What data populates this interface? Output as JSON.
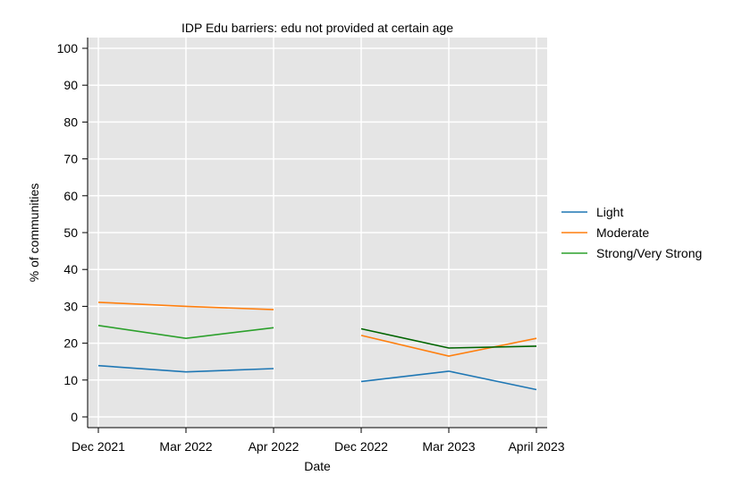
{
  "chart_data": {
    "type": "line",
    "title": "IDP Edu barriers: edu not provided at certain age",
    "xlabel": "Date",
    "ylabel": "% of communities",
    "categories": [
      "Dec 2021",
      "Mar 2022",
      "Apr 2022",
      "Dec 2022",
      "Mar 2023",
      "April 2023"
    ],
    "ylim": [
      0,
      100
    ],
    "yticks": [
      0,
      10,
      20,
      30,
      40,
      50,
      60,
      70,
      80,
      90,
      100
    ],
    "grid": true,
    "legend_position": "right",
    "background_color": "#e5e5e5",
    "series": [
      {
        "name": "Light",
        "color": "#1f77b4",
        "values": [
          13.9,
          12.2,
          13.1,
          9.6,
          12.4,
          7.4
        ]
      },
      {
        "name": "Moderate",
        "color": "#ff7f0e",
        "values": [
          31.1,
          30.0,
          29.1,
          22.1,
          16.5,
          21.3
        ]
      },
      {
        "name": "Strong/Very Strong",
        "color": "#2ca02c",
        "segment_colors": [
          "#2ca02c",
          "#006400"
        ],
        "values": [
          24.8,
          21.3,
          24.2,
          23.9,
          18.7,
          19.2
        ]
      }
    ],
    "segments": [
      [
        0,
        2
      ],
      [
        3,
        5
      ]
    ]
  }
}
